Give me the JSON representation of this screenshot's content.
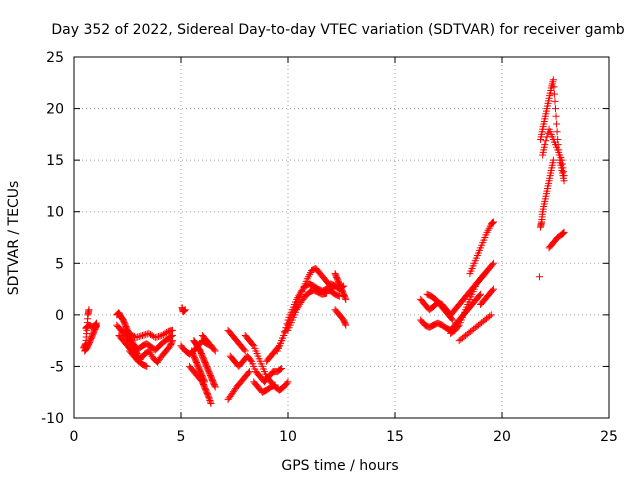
{
  "chart_data": {
    "type": "scatter",
    "title": "Day 352 of 2022, Sidereal Day-to-day VTEC variation (SDTVAR) for receiver gamb",
    "xlabel": "GPS time / hours",
    "ylabel": "SDTVAR / TECUs",
    "xlim": [
      0,
      25
    ],
    "ylim": [
      -10,
      25
    ],
    "xticks": [
      0,
      5,
      10,
      15,
      20,
      25
    ],
    "yticks": [
      -10,
      -5,
      0,
      5,
      10,
      15,
      20,
      25
    ],
    "x_tick_labels": [
      "0",
      "5",
      "10",
      "15",
      "20",
      "25"
    ],
    "y_tick_labels": [
      "-10",
      "-5",
      "0",
      "5",
      "10",
      "15",
      "20",
      "25"
    ],
    "grid": true,
    "marker": "+",
    "color": "#ff0000",
    "series": [
      {
        "name": "SDTVAR",
        "segments": [
          {
            "x": [
              0.45,
              0.55,
              0.6,
              0.65,
              0.7
            ],
            "y": [
              -3.2,
              -2.8,
              -1.5,
              0.0,
              0.5
            ]
          },
          {
            "x": [
              0.5,
              0.6,
              0.7,
              0.8,
              0.9,
              1.0,
              1.05
            ],
            "y": [
              -3.5,
              -3.2,
              -2.8,
              -2.3,
              -1.8,
              -1.3,
              -1.0
            ]
          },
          {
            "x": [
              0.55,
              0.7,
              0.9,
              1.05
            ],
            "y": [
              -1.3,
              -1.0,
              -1.2,
              -0.8
            ]
          },
          {
            "x": [
              2.0,
              2.1,
              2.2,
              2.3,
              2.4,
              2.5,
              2.6,
              2.7,
              2.8,
              2.9,
              3.0
            ],
            "y": [
              0.0,
              0.2,
              -0.2,
              -0.5,
              -1.0,
              -1.5,
              -2.0,
              -2.5,
              -3.0,
              -3.5,
              -4.0
            ]
          },
          {
            "x": [
              2.0,
              2.2,
              2.4,
              2.6,
              2.8,
              3.0,
              3.2,
              3.4,
              3.6,
              3.8,
              4.0,
              4.2,
              4.4,
              4.6
            ],
            "y": [
              -1.0,
              -1.5,
              -2.0,
              -2.5,
              -3.0,
              -3.3,
              -3.0,
              -2.8,
              -3.1,
              -3.4,
              -3.0,
              -2.6,
              -2.3,
              -2.0
            ]
          },
          {
            "x": [
              2.1,
              2.3,
              2.5,
              2.7,
              2.9,
              3.1,
              3.3,
              3.5,
              3.7,
              3.9,
              4.1,
              4.3,
              4.5,
              4.6
            ],
            "y": [
              -2.0,
              -2.5,
              -3.0,
              -3.5,
              -4.0,
              -4.3,
              -3.8,
              -3.5,
              -4.2,
              -4.6,
              -4.0,
              -3.5,
              -3.0,
              -2.5
            ]
          },
          {
            "x": [
              2.3,
              2.6,
              2.9,
              3.2,
              3.5,
              3.8,
              4.1,
              4.4,
              4.6
            ],
            "y": [
              -1.5,
              -1.8,
              -2.2,
              -2.0,
              -1.8,
              -2.2,
              -2.0,
              -1.6,
              -1.5
            ]
          },
          {
            "x": [
              2.6,
              2.8,
              3.0,
              3.2,
              3.4
            ],
            "y": [
              -3.5,
              -4.0,
              -4.5,
              -4.8,
              -5.0
            ]
          },
          {
            "x": [
              5.05,
              5.1,
              5.2
            ],
            "y": [
              0.7,
              0.3,
              0.5
            ]
          },
          {
            "x": [
              5.0,
              5.2,
              5.4,
              5.6,
              5.8,
              6.0,
              6.2,
              6.4
            ],
            "y": [
              -3.0,
              -3.5,
              -3.8,
              -3.5,
              -3.0,
              -2.5,
              -2.8,
              -3.0
            ]
          },
          {
            "x": [
              5.4,
              5.6,
              5.8,
              6.0,
              6.1,
              6.2,
              6.3,
              6.4
            ],
            "y": [
              -5.0,
              -5.5,
              -6.0,
              -6.5,
              -7.0,
              -7.5,
              -8.0,
              -8.6
            ]
          },
          {
            "x": [
              5.5,
              5.6,
              5.7,
              5.8,
              5.9,
              6.0,
              6.1
            ],
            "y": [
              -3.5,
              -4.0,
              -4.5,
              -5.0,
              -5.5,
              -6.0,
              -6.5
            ]
          },
          {
            "x": [
              5.6,
              5.7,
              5.8,
              5.9,
              6.0,
              6.1,
              6.2,
              6.3,
              6.4,
              6.5,
              6.6
            ],
            "y": [
              -2.5,
              -2.8,
              -3.2,
              -3.5,
              -4.0,
              -4.5,
              -5.0,
              -5.5,
              -6.0,
              -6.5,
              -7.0
            ]
          },
          {
            "x": [
              6.0,
              6.2,
              6.4,
              6.6
            ],
            "y": [
              -2.0,
              -2.5,
              -3.0,
              -3.5
            ]
          },
          {
            "x": [
              7.2,
              7.4,
              7.6,
              7.8,
              8.0
            ],
            "y": [
              -1.5,
              -2.0,
              -2.5,
              -3.0,
              -3.5
            ]
          },
          {
            "x": [
              7.3,
              7.5,
              7.7,
              7.9,
              8.1,
              8.3,
              8.5,
              8.7,
              8.9,
              9.1,
              9.3,
              9.5,
              9.7
            ],
            "y": [
              -4.0,
              -4.5,
              -5.0,
              -4.5,
              -4.0,
              -4.5,
              -5.5,
              -6.0,
              -6.5,
              -6.0,
              -5.5,
              -5.5,
              -5.2
            ]
          },
          {
            "x": [
              7.2,
              7.4,
              7.6,
              7.8,
              8.0,
              8.2
            ],
            "y": [
              -8.2,
              -7.6,
              -7.0,
              -6.5,
              -6.0,
              -5.5
            ]
          },
          {
            "x": [
              8.0,
              8.2,
              8.4,
              8.6,
              8.8,
              9.0,
              9.2,
              9.4,
              9.6,
              9.8,
              10.0
            ],
            "y": [
              -2.0,
              -2.5,
              -3.0,
              -4.0,
              -5.0,
              -6.0,
              -6.5,
              -7.0,
              -7.3,
              -7.0,
              -6.5
            ]
          },
          {
            "x": [
              8.4,
              8.6,
              8.8,
              9.0,
              9.2,
              9.4
            ],
            "y": [
              -6.5,
              -7.0,
              -7.5,
              -7.3,
              -7.0,
              -6.8
            ]
          },
          {
            "x": [
              9.0,
              9.2,
              9.4,
              9.6,
              9.8,
              10.0,
              10.2,
              10.4,
              10.6,
              10.8,
              11.0,
              11.2,
              11.4,
              11.6,
              11.8,
              12.0,
              12.2,
              12.4
            ],
            "y": [
              -4.5,
              -4.0,
              -3.5,
              -3.0,
              -2.0,
              -0.5,
              0.5,
              1.5,
              2.2,
              2.8,
              3.0,
              2.8,
              2.5,
              2.3,
              2.5,
              2.3,
              2.0,
              1.8
            ]
          },
          {
            "x": [
              9.5,
              9.7,
              9.9,
              10.1,
              10.3,
              10.5,
              10.7,
              10.9,
              11.1,
              11.3,
              11.5,
              11.7,
              11.9,
              12.1
            ],
            "y": [
              -3.5,
              -2.5,
              -1.5,
              -0.5,
              0.5,
              1.5,
              2.5,
              3.5,
              4.3,
              4.5,
              4.0,
              3.5,
              3.0,
              2.5
            ]
          },
          {
            "x": [
              10.0,
              10.2,
              10.4,
              10.6,
              10.8,
              11.0,
              11.2,
              11.4,
              11.6,
              11.8
            ],
            "y": [
              -1.5,
              -0.5,
              0.5,
              1.2,
              1.8,
              2.2,
              2.4,
              2.2,
              2.0,
              2.1
            ]
          },
          {
            "x": [
              12.2,
              12.3,
              12.4,
              12.5,
              12.6,
              12.7
            ],
            "y": [
              4.0,
              3.5,
              3.0,
              2.5,
              2.0,
              1.5
            ]
          },
          {
            "x": [
              12.2,
              12.4,
              12.6,
              12.7
            ],
            "y": [
              0.5,
              0.0,
              -0.5,
              -1.0
            ]
          },
          {
            "x": [
              12.0,
              12.2,
              12.4,
              12.6
            ],
            "y": [
              3.0,
              2.8,
              2.5,
              2.8
            ]
          },
          {
            "x": [
              16.2,
              16.4,
              16.6,
              16.8,
              17.0,
              17.2,
              17.4,
              17.6,
              17.8,
              18.0,
              18.2,
              18.4,
              18.6,
              18.8,
              19.0,
              19.2,
              19.4,
              19.6
            ],
            "y": [
              1.5,
              1.0,
              0.5,
              0.8,
              1.2,
              1.0,
              0.5,
              0.0,
              0.5,
              1.0,
              1.5,
              2.0,
              2.5,
              3.0,
              3.5,
              4.0,
              4.5,
              5.0
            ]
          },
          {
            "x": [
              16.2,
              16.4,
              16.6,
              16.8,
              17.0,
              17.2,
              17.4,
              17.6,
              17.8,
              18.0,
              18.2,
              18.4,
              18.6,
              18.8,
              19.0
            ],
            "y": [
              -0.5,
              -1.0,
              -1.2,
              -1.0,
              -0.8,
              -1.0,
              -1.3,
              -1.5,
              -1.0,
              -0.5,
              0.0,
              0.5,
              1.0,
              1.5,
              2.0
            ]
          },
          {
            "x": [
              16.5,
              16.7,
              16.9,
              17.1,
              17.3,
              17.5,
              17.7
            ],
            "y": [
              2.0,
              1.8,
              1.5,
              1.0,
              0.5,
              0.0,
              -0.5
            ]
          },
          {
            "x": [
              17.6,
              17.8,
              18.0,
              18.2,
              18.4,
              18.6,
              18.8,
              19.0,
              19.2
            ],
            "y": [
              -1.8,
              -1.5,
              -1.0,
              0.0,
              1.0,
              2.0,
              3.0,
              3.5,
              4.0
            ]
          },
          {
            "x": [
              18.0,
              18.3,
              18.6,
              18.9,
              19.2,
              19.5
            ],
            "y": [
              -2.5,
              -2.0,
              -1.5,
              -1.0,
              -0.5,
              0.0
            ]
          },
          {
            "x": [
              18.5,
              18.7,
              18.9,
              19.1,
              19.3,
              19.5,
              19.6
            ],
            "y": [
              4.0,
              5.0,
              6.0,
              7.0,
              8.0,
              8.8,
              9.0
            ]
          },
          {
            "x": [
              19.0,
              19.2,
              19.4,
              19.6
            ],
            "y": [
              1.0,
              1.5,
              2.0,
              2.5
            ]
          },
          {
            "x": [
              21.8,
              21.85,
              21.9,
              22.0,
              22.1,
              22.2,
              22.3,
              22.4
            ],
            "y": [
              8.5,
              9.0,
              10.0,
              11.0,
              12.0,
              13.0,
              14.0,
              15.0
            ]
          },
          {
            "x": [
              21.8,
              21.9,
              22.0,
              22.1,
              22.2,
              22.3,
              22.4,
              22.5,
              22.6,
              22.7,
              22.8,
              22.9
            ],
            "y": [
              17.0,
              18.0,
              19.0,
              20.0,
              21.0,
              22.0,
              22.8,
              20.0,
              17.0,
              15.0,
              14.0,
              13.0
            ]
          },
          {
            "x": [
              21.9,
              22.0,
              22.2,
              22.4,
              22.6,
              22.8,
              22.9
            ],
            "y": [
              15.5,
              16.5,
              18.0,
              17.0,
              16.0,
              15.0,
              13.5
            ]
          },
          {
            "x": [
              22.2,
              22.4,
              22.6,
              22.8,
              22.9
            ],
            "y": [
              6.5,
              7.0,
              7.5,
              7.8,
              8.0
            ]
          },
          {
            "x": [
              21.75
            ],
            "y": [
              3.7
            ]
          }
        ]
      }
    ]
  }
}
